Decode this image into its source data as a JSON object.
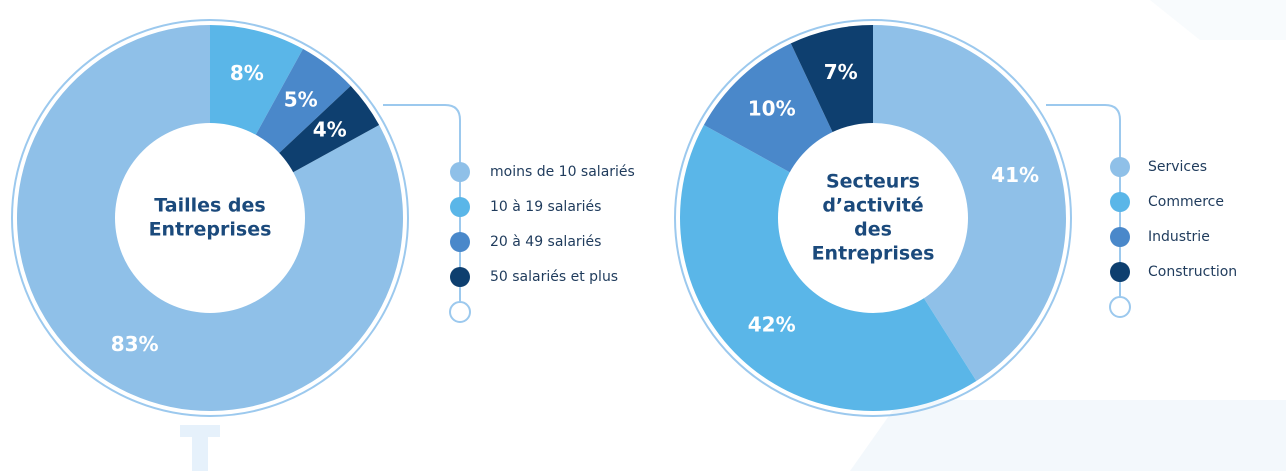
{
  "chart_data": [
    {
      "type": "pie",
      "title": [
        "Tailles des",
        "Entreprises"
      ],
      "categories": [
        "moins de 10 salariés",
        "10 à 19 salariés",
        "20 à 49 salariés",
        "50 salariés et plus"
      ],
      "values": [
        83,
        8,
        5,
        4
      ],
      "value_labels": [
        "83%",
        "8%",
        "5%",
        "4%"
      ],
      "colors": [
        "#8fc0e8",
        "#5ab6e8",
        "#4a88ca",
        "#0e3f6f"
      ],
      "startangle": 61.2,
      "donut": true
    },
    {
      "type": "pie",
      "title": [
        "Secteurs",
        "d’activité",
        "des",
        "Entreprises"
      ],
      "categories": [
        "Services",
        "Commerce",
        "Industrie",
        "Construction"
      ],
      "values": [
        41,
        42,
        10,
        7
      ],
      "value_labels": [
        "41%",
        "42%",
        "10%",
        "7%"
      ],
      "colors": [
        "#8fc0e8",
        "#5ab6e8",
        "#4a88ca",
        "#0e3f6f"
      ],
      "startangle": 0,
      "donut": true
    }
  ]
}
